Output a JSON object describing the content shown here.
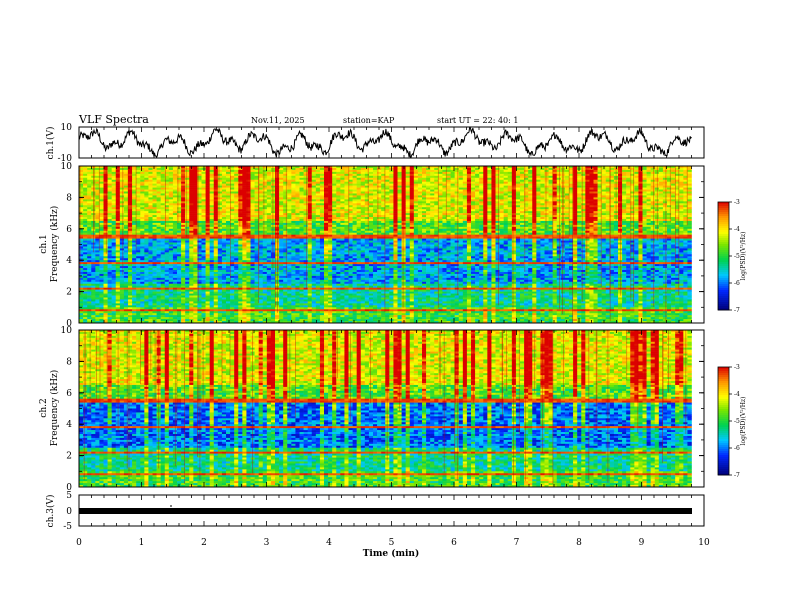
{
  "header": {
    "title": "VLF Spectra",
    "date": "Nov.11, 2025",
    "station": "station=KAP",
    "start": "start UT = 22: 40: 1"
  },
  "colors": {
    "low": "#0000aa",
    "mid_low": "#00c0ff",
    "mid": "#00d000",
    "mid_high": "#ffff00",
    "high": "#e00000"
  },
  "chart_data": [
    {
      "type": "line",
      "id": "ch1_waveform",
      "ylabel": "ch.1(V)",
      "ylim": [
        -10,
        10
      ],
      "y_ticks": [
        "10",
        "-10"
      ],
      "x_range": [
        0,
        10
      ]
    },
    {
      "type": "heatmap",
      "id": "ch1_spectrogram",
      "ylabel": "ch.1\nFrequency (kHz)",
      "ylabel_lines": [
        "ch.1",
        "Frequency (kHz)"
      ],
      "ylim": [
        0,
        10
      ],
      "y_ticks": [
        "0",
        "2",
        "4",
        "6",
        "8",
        "10"
      ],
      "x_range": [
        0,
        9.8
      ],
      "colorbar": {
        "label": "log(PSD)(V²/Hz)",
        "range": [
          -7,
          -3
        ],
        "ticks": [
          "-3",
          "-4",
          "-5",
          "-6",
          "-7"
        ]
      }
    },
    {
      "type": "heatmap",
      "id": "ch2_spectrogram",
      "ylabel": "ch.2\nFrequency (kHz)",
      "ylabel_lines": [
        "ch.2",
        "Frequency (kHz)"
      ],
      "ylim": [
        0,
        10
      ],
      "y_ticks": [
        "0",
        "2",
        "4",
        "6",
        "8",
        "10"
      ],
      "x_range": [
        0,
        9.8
      ],
      "colorbar": {
        "label": "log(PSD)(V²/Hz)",
        "range": [
          -7,
          -3
        ],
        "ticks": [
          "-3",
          "-4",
          "-5",
          "-6",
          "-7"
        ]
      }
    },
    {
      "type": "line",
      "id": "ch3_signal",
      "ylabel": "ch.3(V)",
      "ylim": [
        -5,
        5
      ],
      "y_ticks": [
        "5",
        "0",
        "-5"
      ],
      "values": [
        -1,
        -1
      ],
      "x": [
        0,
        9.8
      ]
    }
  ],
  "x_axis": {
    "label": "Time (min)",
    "ticks": [
      "0",
      "1",
      "2",
      "3",
      "4",
      "5",
      "6",
      "7",
      "8",
      "9",
      "10"
    ],
    "range": [
      0,
      10
    ]
  }
}
